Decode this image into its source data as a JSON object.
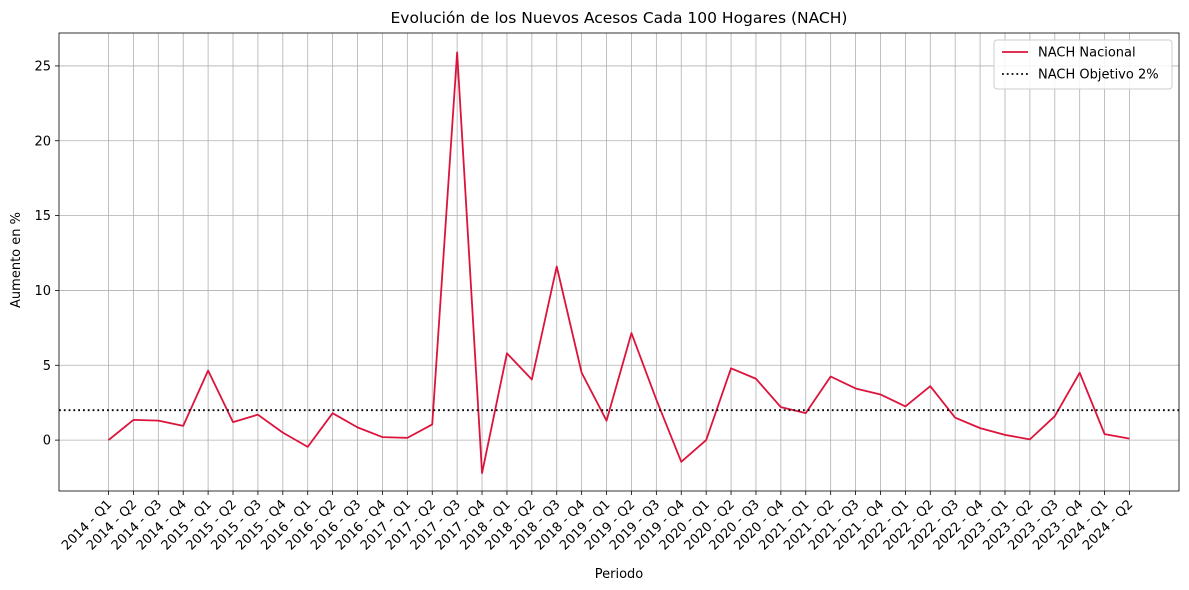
{
  "chart_data": {
    "type": "line",
    "title": "Evolución de los Nuevos Acesos Cada 100 Hogares (NACH)",
    "xlabel": "Periodo",
    "ylabel": "Aumento en %",
    "categories": [
      "2014 - Q1",
      "2014 - Q2",
      "2014 - Q3",
      "2014 - Q4",
      "2015 - Q1",
      "2015 - Q2",
      "2015 - Q3",
      "2015 - Q4",
      "2016 - Q1",
      "2016 - Q2",
      "2016 - Q3",
      "2016 - Q4",
      "2017 - Q1",
      "2017 - Q2",
      "2017 - Q3",
      "2017 - Q4",
      "2018 - Q1",
      "2018 - Q2",
      "2018 - Q3",
      "2018 - Q4",
      "2019 - Q1",
      "2019 - Q2",
      "2019 - Q3",
      "2019 - Q4",
      "2020 - Q1",
      "2020 - Q2",
      "2020 - Q3",
      "2020 - Q4",
      "2021 - Q1",
      "2021 - Q2",
      "2021 - Q3",
      "2021 - Q4",
      "2022 - Q1",
      "2022 - Q2",
      "2022 - Q3",
      "2022 - Q4",
      "2023 - Q1",
      "2023 - Q2",
      "2023 - Q3",
      "2023 - Q4",
      "2024 - Q1",
      "2024 - Q2"
    ],
    "series": [
      {
        "name": "NACH Nacional",
        "color": "#dc143c",
        "style": "solid",
        "values": [
          0.0,
          1.35,
          1.3,
          0.95,
          4.65,
          1.2,
          1.7,
          0.5,
          -0.45,
          1.8,
          0.85,
          0.2,
          0.15,
          1.05,
          25.9,
          -2.2,
          5.8,
          4.05,
          11.6,
          4.5,
          1.3,
          7.15,
          2.7,
          -1.45,
          0.0,
          4.8,
          4.1,
          2.2,
          1.8,
          4.25,
          3.45,
          3.05,
          2.25,
          3.6,
          1.5,
          0.8,
          0.35,
          0.05,
          1.6,
          4.5,
          0.4,
          0.1
        ]
      },
      {
        "name": "NACH Objetivo 2%",
        "color": "#000000",
        "style": "dotted",
        "constant": 2
      }
    ],
    "yticks": [
      0,
      5,
      10,
      15,
      20,
      25
    ],
    "ylim": [
      -3.4,
      27.2
    ],
    "grid": true,
    "legend_position": "top-right"
  }
}
